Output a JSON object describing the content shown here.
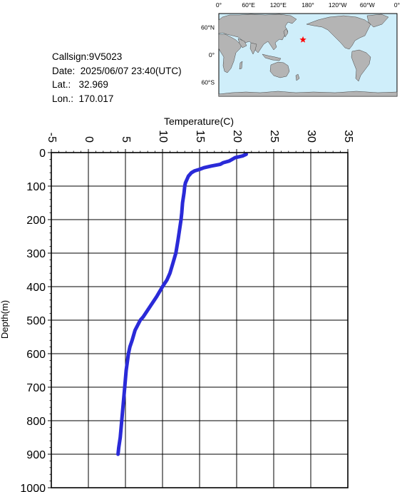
{
  "station": {
    "callsign_line": "Callsign:9V5023",
    "date_label": "Date:",
    "date_value": "2025/06/07 23:40(UTC)",
    "lat_label": "Lat.:",
    "lat_value": "32.969",
    "lon_label": "Lon.:",
    "lon_value": "170.017"
  },
  "map": {
    "lon_labels": [
      "0°",
      "60°E",
      "120°E",
      "180°",
      "120°W",
      "60°W",
      "0°"
    ],
    "lat_labels": [
      "60°N",
      "0°",
      "60°S"
    ],
    "ocean_color": "#cfeefa",
    "land_color": "#b4b4b4",
    "marker_color": "#ff0000",
    "marker_icon": "star-icon",
    "marker_lat": 32.969,
    "marker_lon": 170.017
  },
  "chart_data": {
    "type": "line",
    "xlabel": "Temperature(C)",
    "ylabel": "Depth(m)",
    "xlim": [
      -5,
      35
    ],
    "ylim": [
      1000,
      0
    ],
    "x_ticks": [
      "-5",
      "0",
      "5",
      "10",
      "15",
      "20",
      "25",
      "30",
      "35"
    ],
    "y_ticks": [
      "0",
      "100",
      "200",
      "300",
      "400",
      "500",
      "600",
      "700",
      "800",
      "900",
      "1000"
    ],
    "grid": true,
    "line_color": "#2a2ad8",
    "series": [
      {
        "depth": [
          5,
          10,
          15,
          20,
          25,
          30,
          35,
          40,
          45,
          50,
          55,
          60,
          70,
          80,
          90,
          100,
          120,
          150,
          180,
          200,
          230,
          260,
          300,
          330,
          360,
          380,
          400,
          430,
          460,
          490,
          500,
          530,
          560,
          580,
          600,
          650,
          700,
          750,
          800,
          850,
          880,
          900
        ],
        "temperature": [
          21.3,
          20.8,
          19.8,
          19.4,
          19.0,
          18.2,
          17.8,
          16.6,
          15.6,
          15.0,
          14.3,
          13.9,
          13.5,
          13.3,
          13.1,
          13.0,
          12.9,
          12.7,
          12.6,
          12.5,
          12.3,
          12.1,
          11.8,
          11.4,
          11.0,
          10.6,
          10.0,
          9.2,
          8.3,
          7.4,
          7.0,
          6.3,
          5.9,
          5.6,
          5.4,
          5.1,
          4.9,
          4.7,
          4.5,
          4.3,
          4.1,
          4.0
        ]
      }
    ]
  }
}
